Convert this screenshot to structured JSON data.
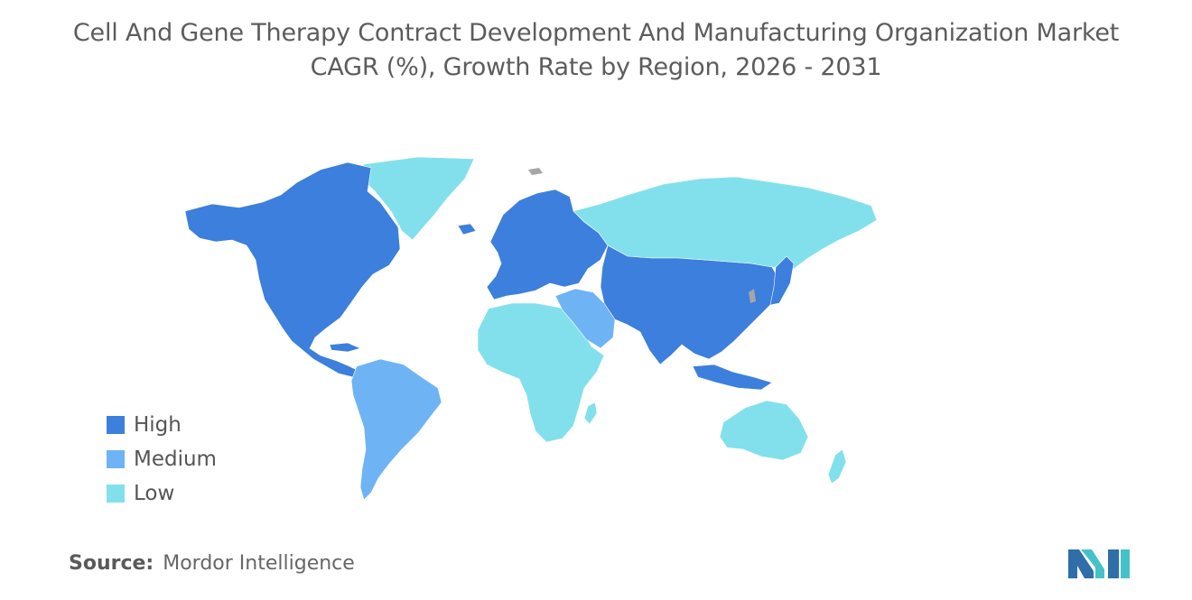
{
  "title": {
    "line1": "Cell And Gene Therapy Contract Development And Manufacturing Organization Market",
    "line2": "CAGR (%), Growth Rate by Region, 2026 - 2031"
  },
  "legend": [
    {
      "label": "High",
      "color": "#3c7fdc"
    },
    {
      "label": "Medium",
      "color": "#6eb4f5"
    },
    {
      "label": "Low",
      "color": "#82e0ec"
    }
  ],
  "no_data_color": "#a6a6a6",
  "regions": {
    "north_america": "High",
    "europe": "High",
    "asia_pacific_east": "High",
    "south_america": "Medium",
    "middle_east": "Medium",
    "africa": "Low",
    "russia": "Low",
    "greenland": "Low",
    "australia": "Low"
  },
  "source": {
    "label": "Source:",
    "value": "Mordor Intelligence"
  },
  "logo": {
    "icon": "mordor-intelligence-logo-icon"
  }
}
